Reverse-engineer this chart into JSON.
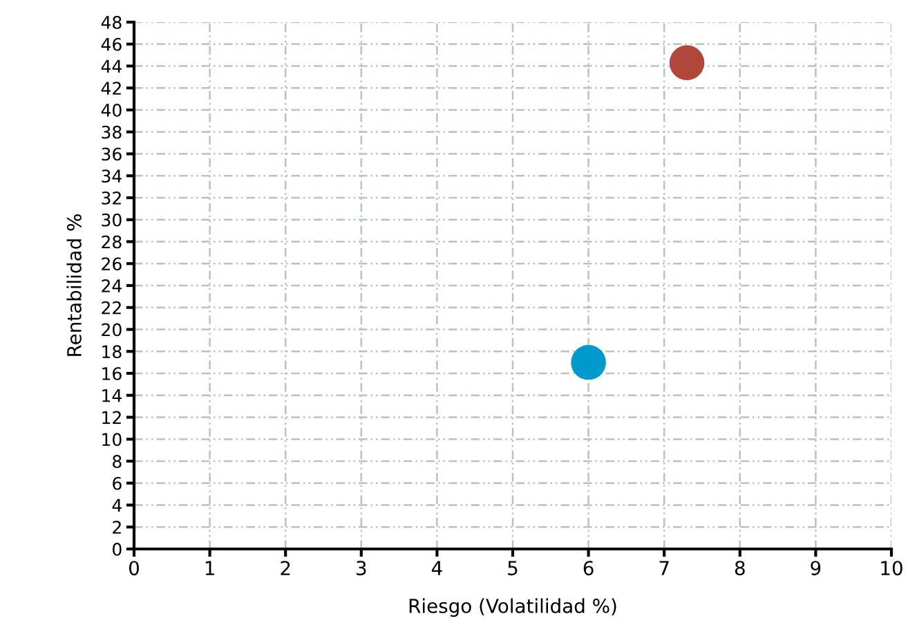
{
  "chart_data": {
    "type": "scatter",
    "xlabel": "Riesgo (Volatilidad %)",
    "ylabel": "Rentabilidad %",
    "series": [
      {
        "color": "#0099cc",
        "x": [
          6.0
        ],
        "values": [
          17.0
        ]
      },
      {
        "color": "#b0473a",
        "x": [
          7.3
        ],
        "values": [
          44.3
        ]
      }
    ],
    "xlim": [
      0,
      10
    ],
    "xticks": [
      0,
      1,
      2,
      3,
      4,
      5,
      6,
      7,
      8,
      9,
      10
    ],
    "ylim": [
      0,
      48
    ],
    "yticks": [
      0,
      2,
      4,
      6,
      8,
      10,
      12,
      14,
      16,
      18,
      20,
      22,
      24,
      26,
      28,
      30,
      32,
      34,
      36,
      38,
      40,
      42,
      44,
      46,
      48
    ],
    "grid": true,
    "marker": "circle",
    "legend": false
  }
}
